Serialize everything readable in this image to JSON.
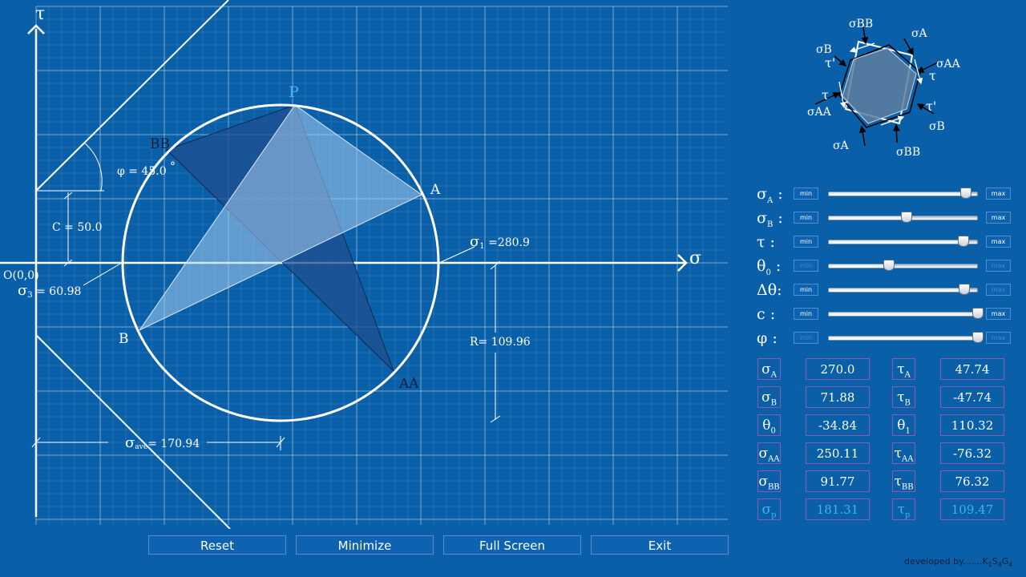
{
  "axes": {
    "tau_label": "τ",
    "sigma_label": "σ",
    "origin_label": "O(0,0)"
  },
  "points": {
    "P": "P",
    "A": "A",
    "B": "B",
    "AA": "AA",
    "BB": "BB"
  },
  "annotations": {
    "phi": "φ = 45.0",
    "degree_mark": "°",
    "c": "C = 50.0",
    "sigma1_sym": "σ",
    "sigma1_sub": "1",
    "sigma1_val": " =280.9",
    "sigma3_sym": "σ",
    "sigma3_sub": "3",
    "sigma3_val": " = 60.98",
    "r": "R= 109.96",
    "sigma_ave_sym": "σ",
    "sigma_ave_sub": "ave",
    "sigma_ave_val": "= 170.94"
  },
  "diagram": {
    "sigma_bb_top": "σBB",
    "sigma_a_top": "σA",
    "sigma_b_left": "σB",
    "tau_prime_left": "τ'",
    "sigma_aa_right": "σAA",
    "tau_right": "τ",
    "tau_left": "τ",
    "tau_prime_right": "τ'",
    "sigma_aa_left": "σAA",
    "sigma_b_right": "σB",
    "sigma_a_bottom": "σA",
    "sigma_bb_bottom": "σBB"
  },
  "sliders": [
    {
      "id": "sigma-a",
      "symbol": "σ",
      "sub": "A",
      "suffix": " :",
      "position": 0.92,
      "min_label": "min",
      "max_label": "max",
      "min_enabled": true,
      "max_enabled": true
    },
    {
      "id": "sigma-b",
      "symbol": "σ",
      "sub": "B",
      "suffix": " :",
      "position": 0.52,
      "min_label": "min",
      "max_label": "max",
      "min_enabled": true,
      "max_enabled": true
    },
    {
      "id": "tau",
      "symbol": "τ",
      "sub": "",
      "suffix": " :",
      "position": 0.9,
      "min_label": "min",
      "max_label": "max",
      "min_enabled": true,
      "max_enabled": true
    },
    {
      "id": "theta0",
      "symbol": "θ",
      "sub": "0",
      "suffix": " :",
      "position": 0.4,
      "min_label": "min",
      "max_label": "max",
      "min_enabled": false,
      "max_enabled": false
    },
    {
      "id": "delta-theta",
      "symbol": "Δθ",
      "sub": "",
      "suffix": ":",
      "position": 0.91,
      "min_label": "min",
      "max_label": "max",
      "min_enabled": true,
      "max_enabled": false
    },
    {
      "id": "c",
      "symbol": "c",
      "sub": "",
      "suffix": " :",
      "position": 0.999,
      "min_label": "min",
      "max_label": "max",
      "min_enabled": true,
      "max_enabled": true
    },
    {
      "id": "phi",
      "symbol": "φ",
      "sub": "",
      "suffix": " :",
      "position": 0.999,
      "min_label": "min",
      "max_label": "max",
      "min_enabled": false,
      "max_enabled": false
    }
  ],
  "results": [
    {
      "l_sym": "σ",
      "l_sub": "A",
      "l_val": "270.0",
      "r_sym": "τ",
      "r_sub": "A",
      "r_val": "47.74",
      "highlight": false
    },
    {
      "l_sym": "σ",
      "l_sub": "B",
      "l_val": "71.88",
      "r_sym": "τ",
      "r_sub": "B",
      "r_val": "-47.74",
      "highlight": false
    },
    {
      "l_sym": "θ",
      "l_sub": "0",
      "l_val": "-34.84",
      "r_sym": "θ",
      "r_sub": "1",
      "r_val": "110.32",
      "highlight": false
    },
    {
      "l_sym": "σ",
      "l_sub": "AA",
      "l_val": "250.11",
      "r_sym": "τ",
      "r_sub": "AA",
      "r_val": "-76.32",
      "highlight": false
    },
    {
      "l_sym": "σ",
      "l_sub": "BB",
      "l_val": "91.77",
      "r_sym": "τ",
      "r_sub": "BB",
      "r_val": "76.32",
      "highlight": false
    },
    {
      "l_sym": "σ",
      "l_sub": "p",
      "l_val": "181.31",
      "r_sym": "τ",
      "r_sub": "p",
      "r_val": "109.47",
      "highlight": true
    }
  ],
  "buttons": {
    "reset": "Reset",
    "minimize": "Minimize",
    "fullscreen": "Full Screen",
    "exit": "Exit"
  },
  "credit": {
    "prefix": "developed by.......",
    "k": "K",
    "k_sub": "1",
    "s": "S",
    "s_sub": "4",
    "g": "G",
    "g_sub": "4"
  }
}
